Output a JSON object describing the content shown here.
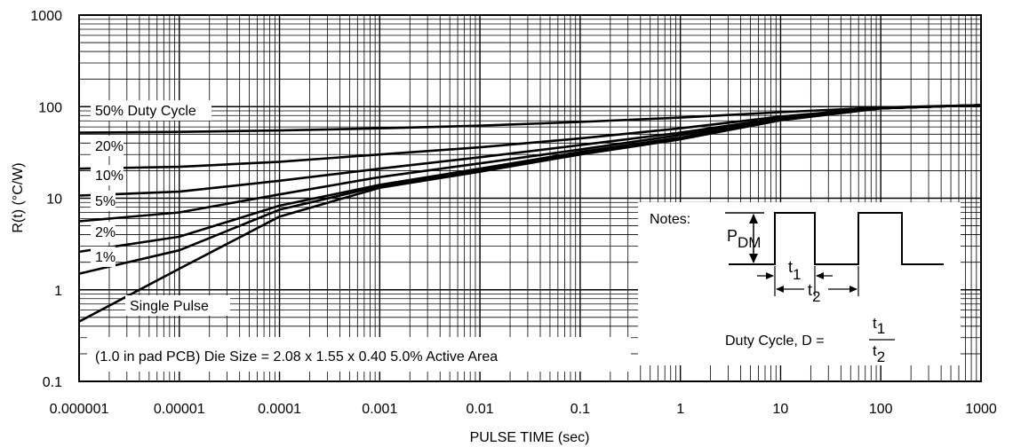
{
  "chart_data": {
    "type": "line",
    "title": "",
    "xlabel": "PULSE TIME (sec)",
    "ylabel": "R(t) (°C/W)",
    "x_scale": "log",
    "y_scale": "log",
    "xlim": [
      1e-06,
      1000
    ],
    "ylim": [
      0.1,
      1000
    ],
    "grid": true,
    "x_tick_labels": [
      "0.000001",
      "0.00001",
      "0.0001",
      "0.001",
      "0.01",
      "0.1",
      "1",
      "10",
      "100",
      "1000"
    ],
    "y_tick_labels": [
      "0.1",
      "1",
      "10",
      "100",
      "1000"
    ],
    "x": [
      1e-06,
      1e-05,
      0.0001,
      0.001,
      0.01,
      0.1,
      1,
      10,
      100,
      1000
    ],
    "series": [
      {
        "name": "50% Duty Cycle",
        "values": [
          52,
          53,
          55,
          58,
          62,
          68,
          76,
          87,
          98,
          104
        ]
      },
      {
        "name": "20%",
        "values": [
          21,
          22,
          25,
          30,
          36,
          45,
          58,
          78,
          97,
          104
        ]
      },
      {
        "name": "10%",
        "values": [
          10.7,
          11.8,
          15.5,
          21,
          28,
          38,
          52,
          75,
          96,
          104
        ]
      },
      {
        "name": "5%",
        "values": [
          5.6,
          7,
          11,
          17,
          24,
          34,
          49,
          73,
          96,
          104
        ]
      },
      {
        "name": "2%",
        "values": [
          2.6,
          3.8,
          8.3,
          14,
          21,
          32,
          46,
          72,
          96,
          104
        ]
      },
      {
        "name": "1%",
        "values": [
          1.5,
          2.7,
          7.5,
          13.5,
          20,
          31,
          45,
          71,
          96,
          104
        ]
      },
      {
        "name": "Single Pulse",
        "values": [
          0.45,
          1.7,
          6.3,
          13,
          19.5,
          30,
          44,
          71,
          96,
          104
        ]
      }
    ],
    "annotation_text": "(1.0 in pad PCB) Die Size = 2.08 x 1.55 x 0.40 5.0% Active Area"
  },
  "notes": {
    "heading": "Notes:",
    "p_label": "P",
    "p_sub": "DM",
    "t_label": "t",
    "t1_sub": "1",
    "t2_sub": "2",
    "duty_text": "Duty Cycle, D = ",
    "frac_num_t": "t",
    "frac_num_sub": "1",
    "frac_den_t": "t",
    "frac_den_sub": "2"
  },
  "colors": {
    "line": "#000000",
    "grid": "#000000",
    "background": "#ffffff"
  }
}
